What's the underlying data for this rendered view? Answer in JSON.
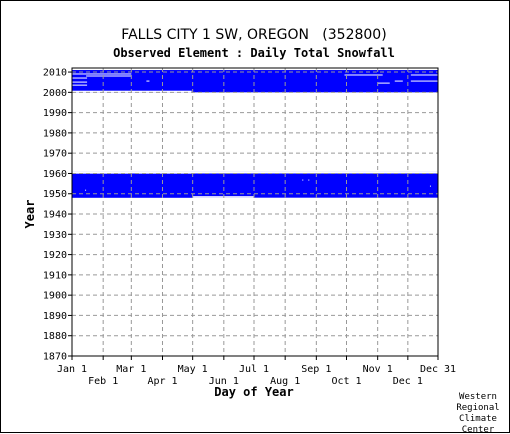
{
  "chart_data": {
    "type": "heatmap",
    "title": "FALLS CITY 1 SW, OREGON   (352800)",
    "subtitle": "Observed Element : Daily Total Snowfall",
    "xlabel": "Day of Year",
    "ylabel": "Year",
    "x_tick_labels_upper": [
      "Jan 1",
      "Mar 1",
      "May 1",
      "Jul 1",
      "Sep 1",
      "Nov 1",
      "Dec 31"
    ],
    "x_tick_labels_lower": [
      "Feb 1",
      "Apr 1",
      "Jun 1",
      "Aug 1",
      "Oct 1",
      "Dec 1"
    ],
    "x_ticks_upper_doy": [
      1,
      60,
      121,
      182,
      244,
      305,
      365
    ],
    "x_ticks_lower_doy": [
      32,
      91,
      152,
      213,
      274,
      335
    ],
    "y_ticks": [
      1870,
      1880,
      1890,
      1900,
      1910,
      1920,
      1930,
      1940,
      1950,
      1960,
      1970,
      1980,
      1990,
      2000,
      2010
    ],
    "xlim": [
      1,
      365
    ],
    "ylim": [
      1870,
      2012
    ],
    "grid": true,
    "mark_color": "#0000ff",
    "background_color": "#ffffff",
    "coverage_blocks": [
      {
        "x_start": 1,
        "x_end": 365,
        "y_start": 1948,
        "y_end": 1961
      },
      {
        "x_start": 1,
        "x_end": 365,
        "y_start": 2000,
        "y_end": 2011
      }
    ],
    "gaps": [
      {
        "x_start": 1,
        "x_end": 366,
        "y_start": 1960,
        "y_end": 1961
      },
      {
        "x_start": 1,
        "x_end": 60,
        "y_start": 1959.9,
        "y_end": 1961
      },
      {
        "x_start": 66,
        "x_end": 121,
        "y_start": 1959.9,
        "y_end": 1961
      },
      {
        "x_start": 191,
        "x_end": 366,
        "y_start": 1960.2,
        "y_end": 1961
      },
      {
        "x_start": 121,
        "x_end": 182,
        "y_start": 1948,
        "y_end": 1948.8
      },
      {
        "x_start": 182,
        "x_end": 366,
        "y_start": 1948,
        "y_end": 1947.8
      },
      {
        "x_start": 1,
        "x_end": 120,
        "y_start": 2000,
        "y_end": 2000.8
      },
      {
        "x_start": 1,
        "x_end": 16,
        "y_start": 2003.4,
        "y_end": 2003.8
      },
      {
        "x_start": 1,
        "x_end": 16,
        "y_start": 2004.9,
        "y_end": 2005.3
      },
      {
        "x_start": 1,
        "x_end": 16,
        "y_start": 2006.9,
        "y_end": 2007.3
      },
      {
        "x_start": 1,
        "x_end": 60,
        "y_start": 2008.9,
        "y_end": 2009.3
      },
      {
        "x_start": 15,
        "x_end": 60,
        "y_start": 2007.9,
        "y_end": 2008.3
      },
      {
        "x_start": 272,
        "x_end": 310,
        "y_start": 2008.4,
        "y_end": 2008.8
      },
      {
        "x_start": 338,
        "x_end": 365,
        "y_start": 2008.4,
        "y_end": 2008.8
      },
      {
        "x_start": 305,
        "x_end": 317,
        "y_start": 2004.4,
        "y_end": 2004.8
      },
      {
        "x_start": 338,
        "x_end": 365,
        "y_start": 2005.4,
        "y_end": 2005.8
      },
      {
        "x_start": 322,
        "x_end": 330,
        "y_start": 2005.4,
        "y_end": 2005.8
      },
      {
        "x_start": 40,
        "x_end": 45,
        "y_start": 2007.9,
        "y_end": 2008.3
      },
      {
        "x_start": 75,
        "x_end": 78,
        "y_start": 2005.4,
        "y_end": 2005.8
      },
      {
        "x_start": 14,
        "x_end": 15,
        "y_start": 1951.5,
        "y_end": 1952.0
      },
      {
        "x_start": 230,
        "x_end": 231,
        "y_start": 1956.5,
        "y_end": 1957.0
      },
      {
        "x_start": 236,
        "x_end": 237,
        "y_start": 1956.5,
        "y_end": 1957.0
      },
      {
        "x_start": 357,
        "x_end": 358,
        "y_start": 1953.5,
        "y_end": 1954.0
      }
    ]
  },
  "credit": [
    "Western",
    "Regional",
    "Climate",
    "Center"
  ]
}
